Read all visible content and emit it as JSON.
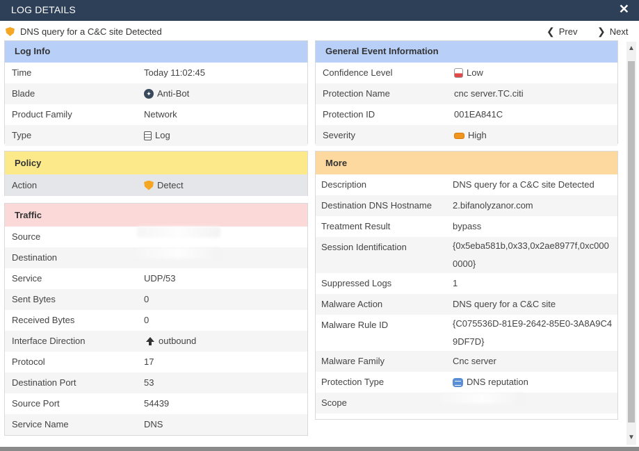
{
  "window": {
    "title": "LOG DETAILS",
    "close_icon": "close-icon"
  },
  "header": {
    "event_icon": "shield-icon",
    "event_title": "DNS query for a C&C site Detected",
    "prev_label": "Prev",
    "next_label": "Next"
  },
  "log_info": {
    "title": "Log Info",
    "rows": [
      {
        "label": "Time",
        "value": "Today 11:02:45"
      },
      {
        "label": "Blade",
        "value": "Anti-Bot",
        "icon": "antibot-badge-icon"
      },
      {
        "label": "Product Family",
        "value": "Network"
      },
      {
        "label": "Type",
        "value": "Log",
        "icon": "document-icon"
      }
    ]
  },
  "policy": {
    "title": "Policy",
    "rows": [
      {
        "label": "Action",
        "value": "Detect",
        "icon": "shield-icon"
      }
    ]
  },
  "traffic": {
    "title": "Traffic",
    "rows": [
      {
        "label": "Source",
        "value": ""
      },
      {
        "label": "Destination",
        "value": ""
      },
      {
        "label": "Service",
        "value": "UDP/53"
      },
      {
        "label": "Sent Bytes",
        "value": "0"
      },
      {
        "label": "Received Bytes",
        "value": "0"
      },
      {
        "label": "Interface Direction",
        "value": "outbound",
        "icon": "arrow-up-icon"
      },
      {
        "label": "Protocol",
        "value": "17"
      },
      {
        "label": "Destination Port",
        "value": "53"
      },
      {
        "label": "Source Port",
        "value": "54439"
      },
      {
        "label": "Service Name",
        "value": "DNS"
      }
    ]
  },
  "general": {
    "title": "General Event Information",
    "rows": [
      {
        "label": "Confidence Level",
        "value": "Low",
        "icon": "confidence-low-icon"
      },
      {
        "label": "Protection Name",
        "value": "cnc server.TC.citi"
      },
      {
        "label": "Protection ID",
        "value": "001EA841C"
      },
      {
        "label": "Severity",
        "value": "High",
        "icon": "severity-high-icon"
      }
    ]
  },
  "more": {
    "title": "More",
    "rows": [
      {
        "label": "Description",
        "value": "DNS query for a C&C site Detected"
      },
      {
        "label": "Destination DNS Hostname",
        "value": "2.bifanolyzanor.com"
      },
      {
        "label": "Treatment Result",
        "value": "bypass"
      },
      {
        "label": "Session Identification",
        "value": "{0x5eba581b,0x33,0x2ae8977f,0xc0000000}"
      },
      {
        "label": "Suppressed Logs",
        "value": "1"
      },
      {
        "label": "Malware Action",
        "value": "DNS query for a C&C site"
      },
      {
        "label": "Malware Rule ID",
        "value": "{C075536D-81E9-2642-85E0-3A8A9C49DF7D}"
      },
      {
        "label": "Malware Family",
        "value": "Cnc server"
      },
      {
        "label": "Protection Type",
        "value": "DNS reputation",
        "icon": "chat-bubble-icon"
      },
      {
        "label": "Scope",
        "value": ""
      }
    ]
  }
}
